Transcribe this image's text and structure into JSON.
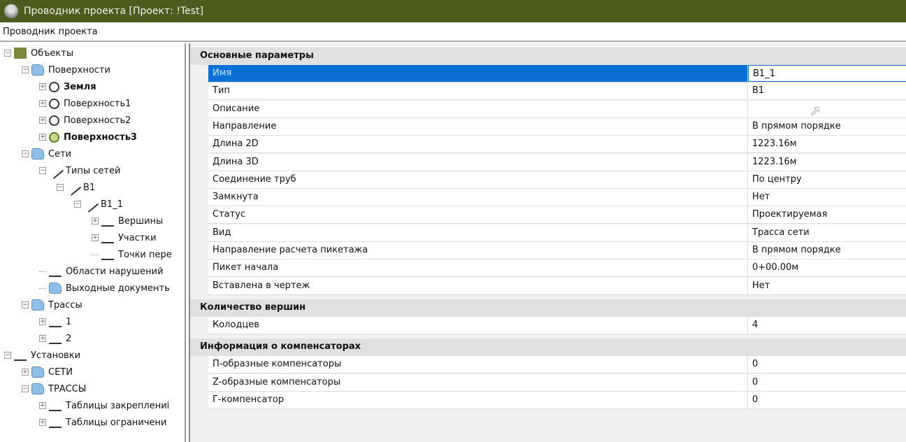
{
  "window": {
    "title": "Проводник проекта [Проект: !Test]"
  },
  "panel_title": "Проводник проекта",
  "tree": [
    {
      "label": "Объекты",
      "level": 0,
      "exp": "-",
      "icon": "objects-icon",
      "bold": false
    },
    {
      "label": "Поверхности",
      "level": 1,
      "exp": "-",
      "icon": "folder-icon",
      "bold": false
    },
    {
      "label": "Земля",
      "level": 2,
      "exp": "+",
      "icon": "surface-icon",
      "bold": true
    },
    {
      "label": "Поверхность1",
      "level": 2,
      "exp": "+",
      "icon": "surface-icon",
      "bold": false
    },
    {
      "label": "Поверхность2",
      "level": 2,
      "exp": "+",
      "icon": "surface-icon",
      "bold": false
    },
    {
      "label": "Поверхность3",
      "level": 2,
      "exp": "+",
      "icon": "surface-green-icon",
      "bold": true
    },
    {
      "label": "Сети",
      "level": 1,
      "exp": "-",
      "icon": "folder-icon",
      "bold": false
    },
    {
      "label": "Типы сетей",
      "level": 2,
      "exp": "-",
      "icon": "network-types-icon",
      "bold": false
    },
    {
      "label": "B1",
      "level": 3,
      "exp": "-",
      "icon": "pipe-icon",
      "bold": false
    },
    {
      "label": "B1_1",
      "level": 4,
      "exp": "-",
      "icon": "pipe-icon",
      "bold": false
    },
    {
      "label": "Вершины",
      "level": 5,
      "exp": "+",
      "icon": "vertices-icon",
      "bold": false
    },
    {
      "label": "Участки",
      "level": 5,
      "exp": "+",
      "icon": "segments-icon",
      "bold": false
    },
    {
      "label": "Точки пере",
      "level": 5,
      "exp": "",
      "icon": "crossing-points-icon",
      "bold": false
    },
    {
      "label": "Области нарушений",
      "level": 2,
      "exp": "",
      "icon": "violations-icon",
      "bold": false
    },
    {
      "label": "Выходные документь",
      "level": 2,
      "exp": "",
      "icon": "folder-icon",
      "bold": false
    },
    {
      "label": "Трассы",
      "level": 1,
      "exp": "-",
      "icon": "folder-icon",
      "bold": false
    },
    {
      "label": "1",
      "level": 2,
      "exp": "+",
      "icon": "route-icon",
      "bold": false
    },
    {
      "label": "2",
      "level": 2,
      "exp": "+",
      "icon": "route-icon",
      "bold": false
    },
    {
      "label": "Установки",
      "level": 0,
      "exp": "-",
      "icon": "settings-icon",
      "bold": false
    },
    {
      "label": "СЕТИ",
      "level": 1,
      "exp": "+",
      "icon": "folder-icon",
      "bold": false
    },
    {
      "label": "ТРАССЫ",
      "level": 1,
      "exp": "-",
      "icon": "folder-icon",
      "bold": false
    },
    {
      "label": "Таблицы закреплениі",
      "level": 2,
      "exp": "+",
      "icon": "table-3-icon",
      "bold": false
    },
    {
      "label": "Таблицы ограничени",
      "level": 2,
      "exp": "+",
      "icon": "table-o-icon",
      "bold": false
    }
  ],
  "sections": [
    {
      "title": "Основные параметры",
      "rows": [
        [
          "Имя",
          "B1_1"
        ],
        [
          "Тип",
          "B1"
        ],
        [
          "Описание",
          ""
        ],
        [
          "Направление",
          "В прямом порядке"
        ],
        [
          "Длина 2D",
          "1223.16м"
        ],
        [
          "Длина 3D",
          "1223.16м"
        ],
        [
          "Соединение труб",
          "По центру"
        ],
        [
          "Замкнута",
          "Нет"
        ],
        [
          "Статус",
          "Проектируемая"
        ],
        [
          "Вид",
          "Трасса сети"
        ],
        [
          "Направление расчета пикетажа",
          "В прямом порядке"
        ],
        [
          "Пикет начала",
          "0+00.00м"
        ],
        [
          "Вставлена в чертеж",
          "Нет"
        ]
      ]
    },
    {
      "title": "Количество вершин",
      "rows": [
        [
          "Колодцев",
          "4"
        ]
      ]
    },
    {
      "title": "Информация о компенсаторах",
      "rows": [
        [
          "П-образные компенсаторы",
          "0"
        ],
        [
          "Z-образные компенсаторы",
          "0"
        ],
        [
          "Г-компенсатор",
          "0"
        ]
      ]
    }
  ],
  "selected_row": "Имя"
}
